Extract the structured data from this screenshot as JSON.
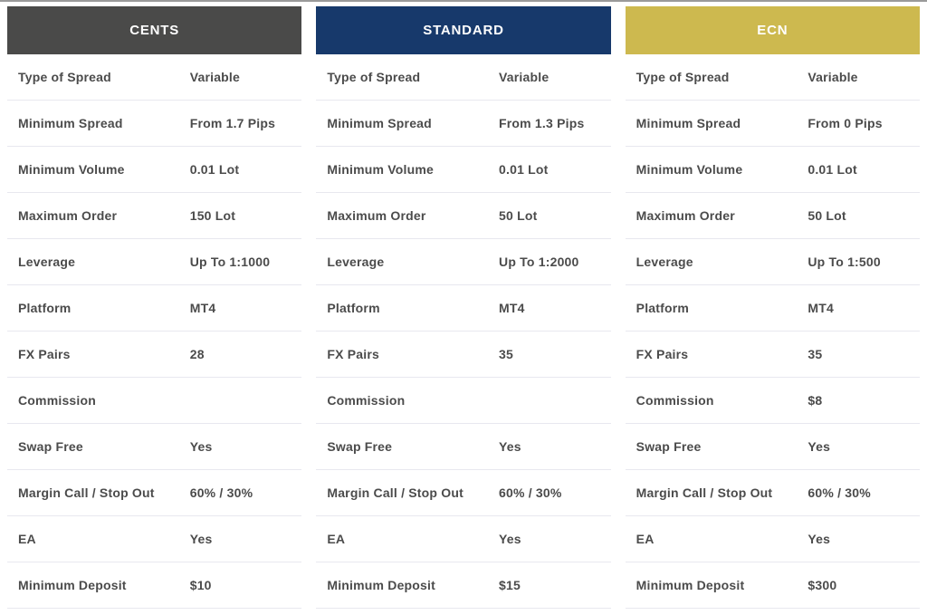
{
  "colors": {
    "cents_header": "#4a4a49",
    "standard_header": "#17396b",
    "ecn_header": "#cdb94f",
    "header_text": "#ffffff",
    "row_text": "#4b4b4b",
    "divider": "#e8e8ef"
  },
  "accounts": [
    {
      "name": "CENTS",
      "header_color": "#4a4a49",
      "rows": [
        {
          "label": "Type of Spread",
          "value": "Variable"
        },
        {
          "label": "Minimum Spread",
          "value": "From 1.7 Pips"
        },
        {
          "label": "Minimum Volume",
          "value": "0.01 Lot"
        },
        {
          "label": "Maximum Order",
          "value": "150 Lot"
        },
        {
          "label": "Leverage",
          "value": "Up To 1:1000"
        },
        {
          "label": "Platform",
          "value": "MT4"
        },
        {
          "label": "FX Pairs",
          "value": "28"
        },
        {
          "label": "Commission",
          "value": ""
        },
        {
          "label": "Swap Free",
          "value": "Yes"
        },
        {
          "label": "Margin Call / Stop Out",
          "value": "60% / 30%"
        },
        {
          "label": "EA",
          "value": "Yes"
        },
        {
          "label": "Minimum Deposit",
          "value": "$10"
        }
      ]
    },
    {
      "name": "STANDARD",
      "header_color": "#17396b",
      "rows": [
        {
          "label": "Type of Spread",
          "value": "Variable"
        },
        {
          "label": "Minimum Spread",
          "value": "From 1.3 Pips"
        },
        {
          "label": "Minimum Volume",
          "value": "0.01 Lot"
        },
        {
          "label": "Maximum Order",
          "value": "50 Lot"
        },
        {
          "label": "Leverage",
          "value": "Up To 1:2000"
        },
        {
          "label": "Platform",
          "value": "MT4"
        },
        {
          "label": "FX Pairs",
          "value": "35"
        },
        {
          "label": "Commission",
          "value": ""
        },
        {
          "label": "Swap Free",
          "value": "Yes"
        },
        {
          "label": "Margin Call / Stop Out",
          "value": "60% / 30%"
        },
        {
          "label": "EA",
          "value": "Yes"
        },
        {
          "label": "Minimum Deposit",
          "value": "$15"
        }
      ]
    },
    {
      "name": "ECN",
      "header_color": "#cdb94f",
      "rows": [
        {
          "label": "Type of Spread",
          "value": "Variable"
        },
        {
          "label": "Minimum Spread",
          "value": "From 0 Pips"
        },
        {
          "label": "Minimum Volume",
          "value": "0.01 Lot"
        },
        {
          "label": "Maximum Order",
          "value": "50 Lot"
        },
        {
          "label": "Leverage",
          "value": "Up To 1:500"
        },
        {
          "label": "Platform",
          "value": "MT4"
        },
        {
          "label": "FX Pairs",
          "value": "35"
        },
        {
          "label": "Commission",
          "value": "$8"
        },
        {
          "label": "Swap Free",
          "value": "Yes"
        },
        {
          "label": "Margin Call / Stop Out",
          "value": "60% / 30%"
        },
        {
          "label": "EA",
          "value": "Yes"
        },
        {
          "label": "Minimum Deposit",
          "value": "$300"
        }
      ]
    }
  ]
}
